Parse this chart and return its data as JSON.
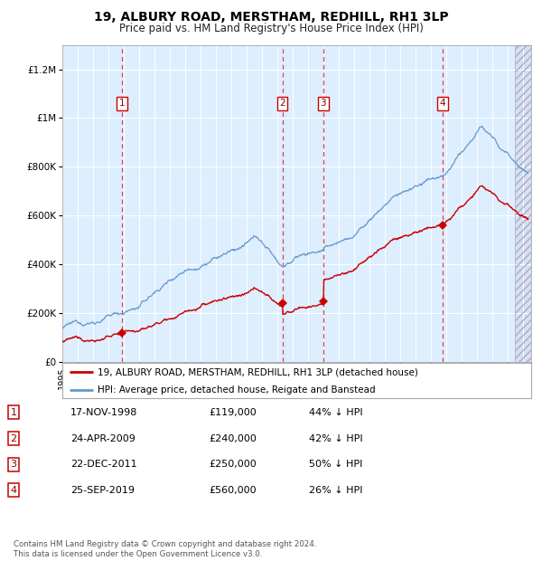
{
  "title": "19, ALBURY ROAD, MERSTHAM, REDHILL, RH1 3LP",
  "subtitle": "Price paid vs. HM Land Registry's House Price Index (HPI)",
  "ylim": [
    0,
    1300000
  ],
  "xlim_start": 1995.0,
  "xlim_end": 2025.5,
  "yticks": [
    0,
    200000,
    400000,
    600000,
    800000,
    1000000,
    1200000
  ],
  "ytick_labels": [
    "£0",
    "£200K",
    "£400K",
    "£600K",
    "£800K",
    "£1M",
    "£1.2M"
  ],
  "background_color": "#ddeeff",
  "grid_color": "#ffffff",
  "sale_dates": [
    1998.88,
    2009.31,
    2011.97,
    2019.73
  ],
  "sale_prices": [
    119000,
    240000,
    250000,
    560000
  ],
  "transaction_labels": [
    "1",
    "2",
    "3",
    "4"
  ],
  "transaction_info": [
    {
      "label": "1",
      "date": "17-NOV-1998",
      "price": "£119,000",
      "pct": "44% ↓ HPI"
    },
    {
      "label": "2",
      "date": "24-APR-2009",
      "price": "£240,000",
      "pct": "42% ↓ HPI"
    },
    {
      "label": "3",
      "date": "22-DEC-2011",
      "price": "£250,000",
      "pct": "50% ↓ HPI"
    },
    {
      "label": "4",
      "date": "25-SEP-2019",
      "price": "£560,000",
      "pct": "26% ↓ HPI"
    }
  ],
  "legend_red_label": "19, ALBURY ROAD, MERSTHAM, REDHILL, RH1 3LP (detached house)",
  "legend_blue_label": "HPI: Average price, detached house, Reigate and Banstead",
  "footer": "Contains HM Land Registry data © Crown copyright and database right 2024.\nThis data is licensed under the Open Government Licence v3.0.",
  "red_line_color": "#cc0000",
  "blue_line_color": "#6699cc",
  "dot_color": "#cc0000",
  "dashed_line_color": "#dd3333"
}
